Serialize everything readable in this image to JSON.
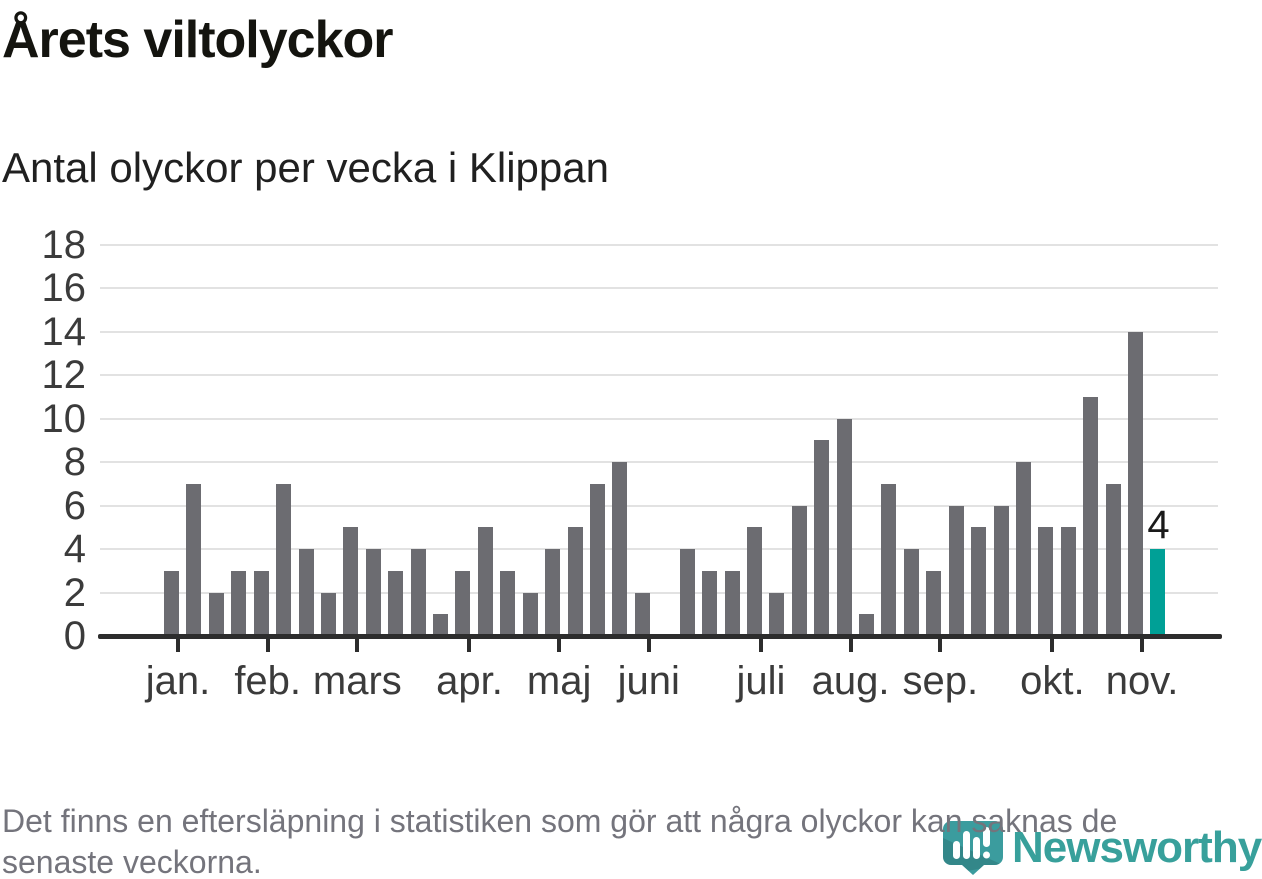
{
  "header": {
    "title": "Årets viltolyckor",
    "subtitle": "Antal olyckor per vecka i Klippan"
  },
  "chart_data": {
    "type": "bar",
    "title": "Årets viltolyckor",
    "subtitle": "Antal olyckor per vecka i Klippan",
    "xlabel": "",
    "ylabel": "",
    "ylim": [
      0,
      18
    ],
    "yticks": [
      0,
      2,
      4,
      6,
      8,
      10,
      12,
      14,
      16,
      18
    ],
    "grid": true,
    "unit": "olyckor per vecka",
    "values": [
      3,
      7,
      2,
      3,
      3,
      7,
      4,
      2,
      5,
      4,
      3,
      4,
      1,
      3,
      5,
      3,
      2,
      4,
      5,
      7,
      8,
      2,
      0,
      4,
      3,
      3,
      5,
      2,
      6,
      9,
      10,
      1,
      7,
      4,
      3,
      6,
      5,
      6,
      8,
      5,
      5,
      11,
      7,
      14,
      4
    ],
    "highlight_last_bar": true,
    "last_value_label": "4",
    "month_ticks": [
      {
        "index": 0,
        "label": "jan."
      },
      {
        "index": 4,
        "label": "feb."
      },
      {
        "index": 8,
        "label": "mars"
      },
      {
        "index": 13,
        "label": "apr."
      },
      {
        "index": 17,
        "label": "maj"
      },
      {
        "index": 21,
        "label": "juni"
      },
      {
        "index": 26,
        "label": "juli"
      },
      {
        "index": 30,
        "label": "aug."
      },
      {
        "index": 34,
        "label": "sep."
      },
      {
        "index": 39,
        "label": "okt."
      },
      {
        "index": 43,
        "label": "nov."
      }
    ],
    "colors": {
      "bar": "#6c6c71",
      "highlight": "#00a096",
      "grid": "#e2e2e2",
      "axis": "#2d2d2d",
      "labels": "#3b3b3b"
    }
  },
  "footer": {
    "line1": "Det finns en eftersläpning i statistiken som gör att några olyckor kan saknas de",
    "line2": "senaste veckorna."
  },
  "logo": {
    "text": "Newsworthy",
    "color": "#38a09b",
    "icon": "newsworthy-chart-bubble-icon"
  }
}
